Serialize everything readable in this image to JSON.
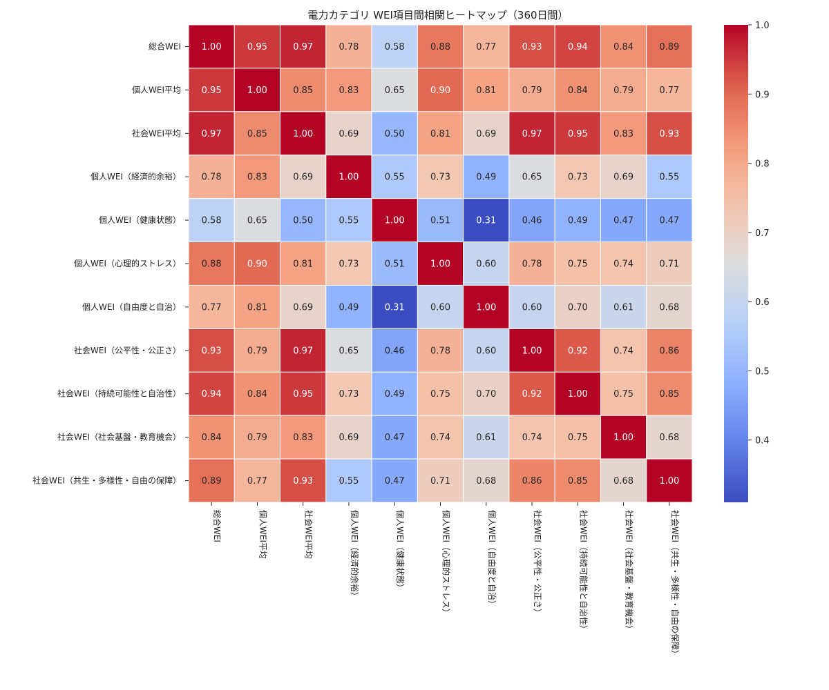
{
  "chart_data": {
    "type": "heatmap",
    "title": "電力カテゴリ WEI項目間相関ヒートマップ（360日間）",
    "labels": [
      "総合WEI",
      "個人WEI平均",
      "社会WEI平均",
      "個人WEI（経済的余裕）",
      "個人WEI（健康状態）",
      "個人WEI（心理的ストレス）",
      "個人WEI（自由度と自治）",
      "社会WEI（公平性・公正さ）",
      "社会WEI（持続可能性と自治性）",
      "社会WEI（社会基盤・教育機会）",
      "社会WEI（共生・多様性・自由の保障）"
    ],
    "values": [
      [
        1.0,
        0.95,
        0.97,
        0.78,
        0.58,
        0.88,
        0.77,
        0.93,
        0.94,
        0.84,
        0.89
      ],
      [
        0.95,
        1.0,
        0.85,
        0.83,
        0.65,
        0.9,
        0.81,
        0.79,
        0.84,
        0.79,
        0.77
      ],
      [
        0.97,
        0.85,
        1.0,
        0.69,
        0.5,
        0.81,
        0.69,
        0.97,
        0.95,
        0.83,
        0.93
      ],
      [
        0.78,
        0.83,
        0.69,
        1.0,
        0.55,
        0.73,
        0.49,
        0.65,
        0.73,
        0.69,
        0.55
      ],
      [
        0.58,
        0.65,
        0.5,
        0.55,
        1.0,
        0.51,
        0.31,
        0.46,
        0.49,
        0.47,
        0.47
      ],
      [
        0.88,
        0.9,
        0.81,
        0.73,
        0.51,
        1.0,
        0.6,
        0.78,
        0.75,
        0.74,
        0.71
      ],
      [
        0.77,
        0.81,
        0.69,
        0.49,
        0.31,
        0.6,
        1.0,
        0.6,
        0.7,
        0.61,
        0.68
      ],
      [
        0.93,
        0.79,
        0.97,
        0.65,
        0.46,
        0.78,
        0.6,
        1.0,
        0.92,
        0.74,
        0.86
      ],
      [
        0.94,
        0.84,
        0.95,
        0.73,
        0.49,
        0.75,
        0.7,
        0.92,
        1.0,
        0.75,
        0.85
      ],
      [
        0.84,
        0.79,
        0.83,
        0.69,
        0.47,
        0.74,
        0.61,
        0.74,
        0.75,
        1.0,
        0.68
      ],
      [
        0.89,
        0.77,
        0.93,
        0.55,
        0.47,
        0.71,
        0.68,
        0.86,
        0.85,
        0.68,
        1.0
      ]
    ],
    "value_range": [
      0.31,
      1.0
    ],
    "colormap": "coolwarm",
    "colorbar_ticks": [
      "0.4",
      "0.5",
      "0.6",
      "0.7",
      "0.8",
      "0.9",
      "1.0"
    ]
  }
}
